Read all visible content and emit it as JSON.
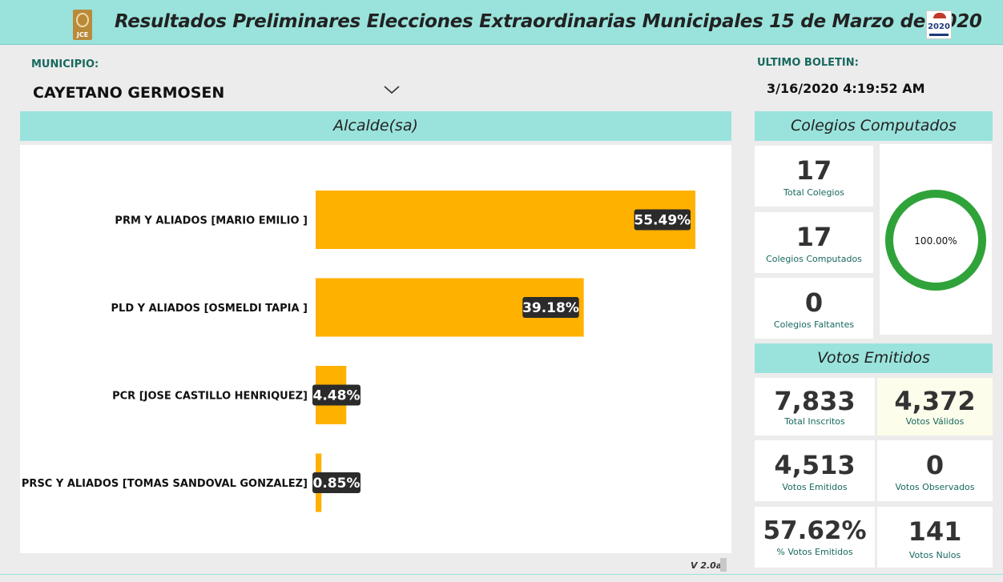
{
  "header": {
    "title": "Resultados Preliminares Elecciones Extraordinarias Municipales 15 de Marzo de 2020",
    "logo_left_text": "JCE",
    "logo_right_text": "2020"
  },
  "municipio": {
    "label": "MUNICIPIO:",
    "value": "CAYETANO GERMOSEN"
  },
  "boletin": {
    "label": "ULTIMO BOLETIN:",
    "value": "3/16/2020 4:19:52 AM"
  },
  "alcalde": {
    "title": "Alcalde(sa)"
  },
  "chart_data": {
    "type": "bar",
    "orientation": "horizontal",
    "categories": [
      "PRM Y ALIADOS [MARIO EMILIO ]",
      "PLD Y ALIADOS [OSMELDI TAPIA ]",
      "PCR [JOSE CASTILLO HENRIQUEZ]",
      "PRSC Y ALIADOS [TOMAS SANDOVAL GONZALEZ]"
    ],
    "values": [
      55.49,
      39.18,
      4.48,
      0.85
    ],
    "data_labels": [
      "55.49%",
      "39.18%",
      "4.48%",
      "0.85%"
    ],
    "bar_color": "#ffb100",
    "label_bg": "#2b2b2b",
    "xlim": [
      0,
      55.49
    ]
  },
  "colegios": {
    "title": "Colegios Computados",
    "total": {
      "value": "17",
      "caption": "Total Colegios"
    },
    "computados": {
      "value": "17",
      "caption": "Colegios Computados"
    },
    "faltantes": {
      "value": "0",
      "caption": "Colegios Faltantes"
    },
    "percent_text": "100.00%",
    "percent_value": 100,
    "ring_color": "#2fa33a"
  },
  "votos": {
    "title": "Votos Emitidos",
    "cards": [
      {
        "value": "7,833",
        "caption": "Total Inscritos"
      },
      {
        "value": "4,372",
        "caption": "Votos Válidos"
      },
      {
        "value": "4,513",
        "caption": "Votos Emitidos"
      },
      {
        "value": "0",
        "caption": "Votos Observados"
      },
      {
        "value": "57.62%",
        "caption": "% Votos Emitidos"
      },
      {
        "value": "141",
        "caption": "Votos Nulos"
      }
    ]
  },
  "footer": {
    "version": "V 2.0a"
  },
  "colors": {
    "accent": "#9ae3dc",
    "caption_green": "#17695e"
  }
}
